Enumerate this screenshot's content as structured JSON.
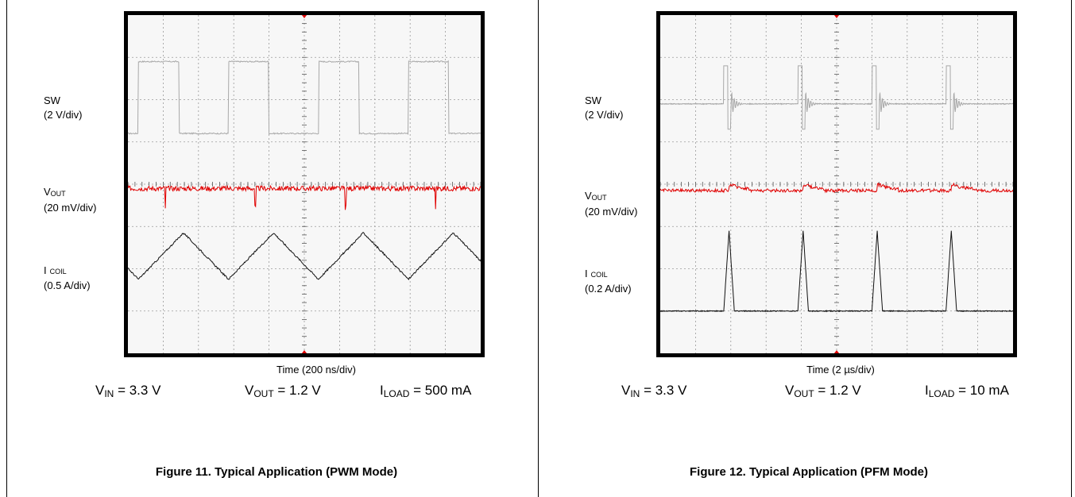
{
  "colors": {
    "sw_trace": "#a8a8a8",
    "vout_trace": "#e00000",
    "icoil_trace": "#111111",
    "grid": "#9a9a9a"
  },
  "figures": [
    {
      "title": "Figure 11. Typical Application (PWM Mode)",
      "time_axis": "Time (200 ns/div)",
      "channels": {
        "sw": {
          "name": "SW",
          "scale": "(2 V/div)"
        },
        "vout": {
          "name": "V",
          "name_sub": "OUT",
          "scale": "(20 mV/div)"
        },
        "icoil": {
          "name": "I",
          "name_sub": "COIL",
          "scale": "(0.5 A/div)"
        }
      },
      "conditions": {
        "vin": {
          "sym": "V",
          "sub": "IN",
          "rest": " = 3.3 V"
        },
        "vout": {
          "sym": "V",
          "sub": "OUT",
          "rest": " = 1.2 V"
        },
        "iload": {
          "sym": "I",
          "sub": "LOAD",
          "rest": " = 500 mA"
        }
      }
    },
    {
      "title": "Figure 12. Typical Application (PFM Mode)",
      "time_axis": "Time (2 µs/div)",
      "channels": {
        "sw": {
          "name": "SW",
          "scale": "(2 V/div)"
        },
        "vout": {
          "name": "V",
          "name_sub": "OUT",
          "scale": "(20 mV/div)"
        },
        "icoil": {
          "name": "I",
          "name_sub": "COIL",
          "scale": "(0.2 A/div)"
        }
      },
      "conditions": {
        "vin": {
          "sym": "V",
          "sub": "IN",
          "rest": " = 3.3 V"
        },
        "vout": {
          "sym": "V",
          "sub": "OUT",
          "rest": " = 1.2 V"
        },
        "iload": {
          "sym": "I",
          "sub": "LOAD",
          "rest": " = 10 mA"
        }
      }
    }
  ],
  "chart_data": [
    {
      "type": "line",
      "title": "Figure 11. Typical Application (PWM Mode)",
      "xlabel": "Time (200 ns/div)",
      "x_divisions": 10,
      "y_divisions": 8,
      "series": [
        {
          "name": "SW",
          "mode": "pwm_square",
          "high_div": 6.9,
          "low_div": 5.2,
          "period_div": 2.55,
          "duty": 0.45,
          "start_div": 0.3
        },
        {
          "name": "VOUT",
          "mode": "ripple",
          "level_div": 3.9,
          "spike_period_div": 2.55,
          "spike_start_div": 1.05
        },
        {
          "name": "ICOIL",
          "mode": "triangle",
          "low_div": 1.75,
          "high_div": 2.85,
          "period_div": 2.55,
          "start_div": 0.3
        }
      ]
    },
    {
      "type": "line",
      "title": "Figure 12. Typical Application (PFM Mode)",
      "xlabel": "Time (2 µs/div)",
      "x_divisions": 10,
      "y_divisions": 8,
      "series": [
        {
          "name": "SW",
          "mode": "pfm_burst",
          "base_div": 5.9,
          "pulse_top_div": 6.8,
          "burst_x_div": [
            1.8,
            3.9,
            6.0,
            8.1
          ]
        },
        {
          "name": "VOUT",
          "mode": "ripple_steps",
          "level_div": 3.85,
          "step_x_div": [
            1.95,
            4.05,
            6.15,
            8.25
          ]
        },
        {
          "name": "ICOIL",
          "mode": "pulses",
          "base_div": 1.0,
          "peak_div": 2.9,
          "peak_x_div": [
            1.95,
            4.05,
            6.15,
            8.25
          ]
        }
      ]
    }
  ]
}
